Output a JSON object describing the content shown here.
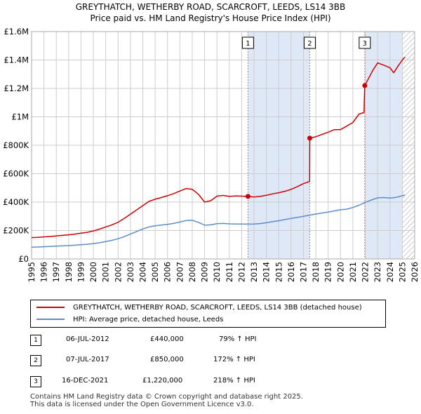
{
  "header": {
    "title_line1": "GREYTHATCH, WETHERBY ROAD, SCARCROFT, LEEDS, LS14 3BB",
    "title_line2": "Price paid vs. HM Land Registry's House Price Index (HPI)"
  },
  "colors": {
    "property": "#cc0000",
    "hpi": "#5b8ec9",
    "shade": "#dfe8f7",
    "grid": "#cccccc"
  },
  "chart_data": {
    "type": "line",
    "xlim": [
      1995,
      2026
    ],
    "ylim": [
      0,
      1600000
    ],
    "y_ticks": [
      {
        "value": 0,
        "label": "£0"
      },
      {
        "value": 200000,
        "label": "£200K"
      },
      {
        "value": 400000,
        "label": "£400K"
      },
      {
        "value": 600000,
        "label": "£600K"
      },
      {
        "value": 800000,
        "label": "£800K"
      },
      {
        "value": 1000000,
        "label": "£1M"
      },
      {
        "value": 1200000,
        "label": "£1.2M"
      },
      {
        "value": 1400000,
        "label": "£1.4M"
      },
      {
        "value": 1600000,
        "label": "£1.6M"
      }
    ],
    "x_ticks": [
      "1995",
      "1996",
      "1997",
      "1998",
      "1999",
      "2000",
      "2001",
      "2002",
      "2003",
      "2004",
      "2005",
      "2006",
      "2007",
      "2008",
      "2009",
      "2010",
      "2011",
      "2012",
      "2013",
      "2014",
      "2015",
      "2016",
      "2017",
      "2018",
      "2019",
      "2020",
      "2021",
      "2022",
      "2023",
      "2024",
      "2025",
      "2026"
    ],
    "shaded_ranges": [
      [
        2012.51,
        2017.51
      ],
      [
        2021.96,
        2025.0
      ]
    ],
    "hatch_from": 2025.0,
    "series": [
      {
        "name": "GREYTHATCH, WETHERBY ROAD, SCARCROFT, LEEDS, LS14 3BB (detached house)",
        "x": [
          1995.0,
          1995.5,
          1996.0,
          1996.5,
          1997.0,
          1997.5,
          1998.0,
          1998.5,
          1999.0,
          1999.5,
          2000.0,
          2000.5,
          2001.0,
          2001.5,
          2002.0,
          2002.5,
          2003.0,
          2003.5,
          2004.0,
          2004.5,
          2005.0,
          2005.5,
          2006.0,
          2006.5,
          2007.0,
          2007.5,
          2008.0,
          2008.5,
          2009.0,
          2009.5,
          2010.0,
          2010.5,
          2011.0,
          2011.5,
          2012.0,
          2012.51,
          2013.0,
          2013.5,
          2014.0,
          2014.5,
          2015.0,
          2015.5,
          2016.0,
          2016.5,
          2017.0,
          2017.5,
          2017.51,
          2018.0,
          2018.5,
          2019.0,
          2019.5,
          2020.0,
          2020.5,
          2021.0,
          2021.5,
          2021.9,
          2021.96,
          2022.3,
          2022.6,
          2023.0,
          2023.3,
          2023.6,
          2024.0,
          2024.3,
          2024.6,
          2025.0,
          2025.2
        ],
        "y": [
          150000,
          152000,
          155000,
          158000,
          162000,
          166000,
          170000,
          175000,
          181000,
          187000,
          197000,
          210000,
          225000,
          240000,
          258000,
          285000,
          315000,
          345000,
          375000,
          405000,
          420000,
          432000,
          445000,
          460000,
          478000,
          495000,
          490000,
          455000,
          400000,
          410000,
          442000,
          447000,
          440000,
          443000,
          442000,
          440000,
          436000,
          440000,
          448000,
          458000,
          466000,
          476000,
          490000,
          508000,
          530000,
          545000,
          850000,
          860000,
          876000,
          892000,
          910000,
          910000,
          935000,
          960000,
          1020000,
          1030000,
          1220000,
          1275000,
          1325000,
          1380000,
          1370000,
          1360000,
          1345000,
          1310000,
          1350000,
          1400000,
          1420000
        ]
      },
      {
        "name": "HPI: Average price, detached house, Leeds",
        "x": [
          1995.0,
          1995.5,
          1996.0,
          1996.5,
          1997.0,
          1997.5,
          1998.0,
          1998.5,
          1999.0,
          1999.5,
          2000.0,
          2000.5,
          2001.0,
          2001.5,
          2002.0,
          2002.5,
          2003.0,
          2003.5,
          2004.0,
          2004.5,
          2005.0,
          2005.5,
          2006.0,
          2006.5,
          2007.0,
          2007.5,
          2008.0,
          2008.5,
          2009.0,
          2009.5,
          2010.0,
          2010.5,
          2011.0,
          2011.5,
          2012.0,
          2012.5,
          2013.0,
          2013.5,
          2014.0,
          2014.5,
          2015.0,
          2015.5,
          2016.0,
          2016.5,
          2017.0,
          2017.5,
          2018.0,
          2018.5,
          2019.0,
          2019.5,
          2020.0,
          2020.5,
          2021.0,
          2021.5,
          2022.0,
          2022.5,
          2023.0,
          2023.5,
          2024.0,
          2024.5,
          2025.0,
          2025.2
        ],
        "y": [
          83000,
          84000,
          86000,
          88000,
          90000,
          92000,
          94000,
          97000,
          100000,
          103000,
          108000,
          114000,
          122000,
          131000,
          142000,
          157000,
          175000,
          193000,
          211000,
          225000,
          233000,
          238000,
          243000,
          250000,
          260000,
          270000,
          272000,
          258000,
          237000,
          240000,
          248000,
          250000,
          247000,
          246000,
          246000,
          245000,
          246000,
          249000,
          255000,
          262000,
          269000,
          277000,
          285000,
          292000,
          300000,
          308000,
          316000,
          323000,
          330000,
          338000,
          346000,
          350000,
          362000,
          378000,
          398000,
          415000,
          430000,
          432000,
          428000,
          433000,
          445000,
          450000
        ]
      }
    ],
    "transactions": [
      {
        "n": "1",
        "x": 2012.51,
        "y": 440000
      },
      {
        "n": "2",
        "x": 2017.51,
        "y": 850000
      },
      {
        "n": "3",
        "x": 2021.96,
        "y": 1220000
      }
    ]
  },
  "legend": {
    "property_label": "GREYTHATCH, WETHERBY ROAD, SCARCROFT, LEEDS, LS14 3BB (detached house)",
    "hpi_label": "HPI: Average price, detached house, Leeds"
  },
  "table": [
    {
      "n": "1",
      "date": "06-JUL-2012",
      "price": "£440,000",
      "hpi": "79% ↑ HPI"
    },
    {
      "n": "2",
      "date": "07-JUL-2017",
      "price": "£850,000",
      "hpi": "172% ↑ HPI"
    },
    {
      "n": "3",
      "date": "16-DEC-2021",
      "price": "£1,220,000",
      "hpi": "218% ↑ HPI"
    }
  ],
  "footer": {
    "line1": "Contains HM Land Registry data © Crown copyright and database right 2025.",
    "line2": "This data is licensed under the Open Government Licence v3.0."
  }
}
